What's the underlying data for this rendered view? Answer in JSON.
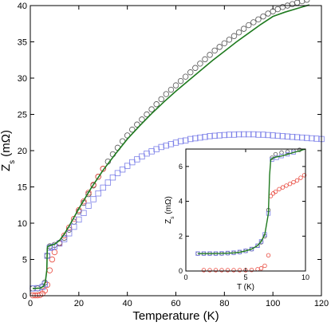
{
  "chart_data": [
    {
      "type": "scatter",
      "role": "main",
      "xlabel": "Temperature (K)",
      "ylabel_main": "Z",
      "ylabel_sub": "s",
      "ylabel_unit": " (mΩ)",
      "xlim": [
        0,
        120
      ],
      "ylim": [
        0,
        40
      ],
      "xticks": [
        0,
        20,
        40,
        60,
        80,
        100,
        120
      ],
      "yticks": [
        0,
        5,
        10,
        15,
        20,
        25,
        30,
        35,
        40
      ],
      "grid": false,
      "colors": {
        "open_circle_black": "#555555",
        "open_circle_red": "#e8483d",
        "open_square_blue": "#7b7fe8",
        "fit_line": "#1f7a1f"
      },
      "series": [
        {
          "marker": "circle-open",
          "color": "#555555",
          "x": [
            1,
            3,
            5,
            6,
            7,
            8,
            10,
            12,
            14,
            16,
            18,
            20,
            22,
            24,
            26,
            28,
            30,
            32,
            34,
            36,
            38,
            40,
            42,
            44,
            46,
            48,
            50,
            52,
            54,
            56,
            58,
            60,
            62,
            64,
            66,
            68,
            70,
            72,
            74,
            76,
            78,
            80,
            82,
            84,
            86,
            88,
            90,
            92,
            94,
            96,
            98,
            100,
            102,
            104,
            106,
            108,
            110,
            112,
            114
          ],
          "y": [
            1.0,
            1.0,
            1.3,
            1.8,
            5.5,
            6.8,
            7.0,
            7.3,
            8.0,
            9.1,
            10.2,
            11.6,
            12.8,
            14.0,
            15.2,
            16.4,
            17.5,
            18.5,
            19.5,
            20.4,
            21.3,
            22.1,
            22.9,
            23.6,
            24.3,
            25.0,
            25.7,
            26.4,
            27.1,
            27.8,
            28.4,
            29.0,
            29.6,
            30.2,
            30.8,
            31.4,
            32.0,
            32.6,
            33.2,
            33.8,
            34.3,
            34.8,
            35.3,
            35.8,
            36.3,
            36.8,
            37.3,
            37.7,
            38.1,
            38.5,
            38.9,
            39.2,
            39.5,
            39.8,
            40.0,
            40.2,
            40.4,
            40.6,
            40.8
          ]
        },
        {
          "marker": "circle-open",
          "color": "#e8483d",
          "x": [
            1,
            2,
            3,
            4,
            5,
            6,
            7,
            8,
            9,
            10,
            12,
            14,
            16,
            18,
            20,
            22,
            24,
            26,
            28,
            30
          ],
          "y": [
            0.05,
            0.05,
            0.05,
            0.1,
            0.3,
            0.7,
            1.5,
            3.5,
            5.0,
            6.0,
            7.2,
            8.3,
            9.4,
            10.6,
            11.8,
            13.0,
            14.2,
            15.3,
            16.4,
            17.5
          ]
        },
        {
          "marker": "square-open",
          "color": "#7b7fe8",
          "x": [
            1,
            3,
            5,
            6,
            7,
            8,
            9,
            10,
            12,
            14,
            16,
            18,
            20,
            22,
            24,
            26,
            28,
            30,
            32,
            34,
            36,
            38,
            40,
            42,
            44,
            46,
            48,
            50,
            52,
            54,
            56,
            58,
            60,
            62,
            64,
            66,
            68,
            70,
            72,
            74,
            76,
            78,
            80,
            82,
            84,
            86,
            88,
            90,
            92,
            94,
            96,
            98,
            100,
            102,
            104,
            106,
            108,
            110,
            112,
            114,
            116,
            118,
            120
          ],
          "y": [
            1.0,
            1.05,
            1.2,
            1.6,
            5.5,
            6.6,
            6.7,
            6.8,
            7.2,
            7.8,
            8.6,
            9.5,
            10.5,
            11.4,
            12.4,
            13.3,
            14.1,
            14.9,
            15.6,
            16.3,
            16.9,
            17.4,
            17.9,
            18.4,
            18.8,
            19.2,
            19.6,
            19.9,
            20.2,
            20.5,
            20.7,
            20.9,
            21.1,
            21.3,
            21.4,
            21.6,
            21.7,
            21.8,
            21.9,
            22.0,
            22.05,
            22.1,
            22.15,
            22.2,
            22.2,
            22.25,
            22.25,
            22.25,
            22.25,
            22.2,
            22.2,
            22.15,
            22.1,
            22.05,
            22.0,
            21.95,
            21.9,
            21.85,
            21.8,
            21.75,
            21.7,
            21.65,
            21.6
          ]
        },
        {
          "marker": "line",
          "color": "#1f7a1f",
          "x": [
            1,
            4,
            5.5,
            6.2,
            6.8,
            7.0,
            7.2,
            8,
            9,
            10,
            12,
            14,
            16,
            18,
            20,
            25,
            30,
            35,
            40,
            45,
            50,
            55,
            60,
            65,
            70,
            75,
            80,
            85,
            90,
            95,
            100,
            105,
            110,
            115
          ],
          "y": [
            1.0,
            1.05,
            1.3,
            1.9,
            3.5,
            6.5,
            6.8,
            6.9,
            7.0,
            7.1,
            7.6,
            8.5,
            9.6,
            10.8,
            12.0,
            14.8,
            17.3,
            19.5,
            21.6,
            23.4,
            25.1,
            26.7,
            28.2,
            29.6,
            31.0,
            32.4,
            33.7,
            35.0,
            36.2,
            37.4,
            38.5,
            39.1,
            39.6,
            40.1
          ]
        }
      ]
    },
    {
      "type": "scatter",
      "role": "inset",
      "xlabel": "T (K)",
      "ylabel_main": "Z",
      "ylabel_sub": "s",
      "ylabel_unit": " (mΩ)",
      "xlim": [
        0,
        10
      ],
      "ylim": [
        0,
        7
      ],
      "xticks": [
        0,
        5,
        10
      ],
      "yticks": [
        0,
        2,
        4,
        6
      ],
      "series": [
        {
          "marker": "circle-open",
          "color": "#555555",
          "x": [
            1.0,
            1.5,
            2.0,
            2.5,
            3.0,
            3.5,
            4.0,
            4.5,
            5.0,
            5.5,
            6.0,
            6.3,
            6.6,
            6.9,
            7.2,
            7.5,
            8.0,
            8.5,
            9.0,
            9.5
          ],
          "y": [
            1.0,
            1.0,
            1.0,
            1.0,
            1.0,
            1.02,
            1.04,
            1.08,
            1.15,
            1.25,
            1.45,
            1.65,
            2.0,
            3.5,
            6.5,
            6.7,
            6.8,
            6.85,
            6.9,
            6.95
          ]
        },
        {
          "marker": "square-open",
          "color": "#7b7fe8",
          "x": [
            1.0,
            1.5,
            2.0,
            2.5,
            3.0,
            3.5,
            4.0,
            4.5,
            5.0,
            5.5,
            6.0,
            6.3,
            6.6,
            6.9,
            7.2,
            7.6,
            8.0,
            8.5,
            9.0
          ],
          "y": [
            1.0,
            1.0,
            1.0,
            1.0,
            1.01,
            1.03,
            1.05,
            1.09,
            1.16,
            1.26,
            1.45,
            1.7,
            2.1,
            3.3,
            6.4,
            6.5,
            6.6,
            6.7,
            6.8
          ]
        },
        {
          "marker": "circle-open",
          "color": "#e8483d",
          "x": [
            1.5,
            2.0,
            2.5,
            3.0,
            3.5,
            4.0,
            4.5,
            5.0,
            5.5,
            6.0,
            6.3,
            6.6,
            6.9,
            7.1,
            7.3,
            7.5,
            7.8,
            8.1,
            8.4,
            8.7,
            9.0,
            9.3,
            9.6,
            9.9
          ],
          "y": [
            0.05,
            0.05,
            0.05,
            0.05,
            0.05,
            0.05,
            0.05,
            0.05,
            0.06,
            0.1,
            0.15,
            0.3,
            0.9,
            4.3,
            4.45,
            4.55,
            4.7,
            4.8,
            4.9,
            5.0,
            5.1,
            5.2,
            5.35,
            5.5
          ]
        },
        {
          "marker": "line",
          "color": "#1f7a1f",
          "x": [
            1.0,
            2.0,
            3.0,
            4.0,
            4.5,
            5.0,
            5.5,
            6.0,
            6.3,
            6.6,
            6.9,
            7.0,
            7.1,
            7.3,
            7.6,
            8.0,
            8.5,
            9.0,
            9.5,
            10.0
          ],
          "y": [
            1.0,
            1.0,
            1.01,
            1.04,
            1.08,
            1.15,
            1.26,
            1.46,
            1.7,
            2.1,
            3.3,
            5.5,
            6.4,
            6.5,
            6.55,
            6.6,
            6.7,
            6.8,
            6.9,
            7.0
          ]
        }
      ]
    }
  ]
}
